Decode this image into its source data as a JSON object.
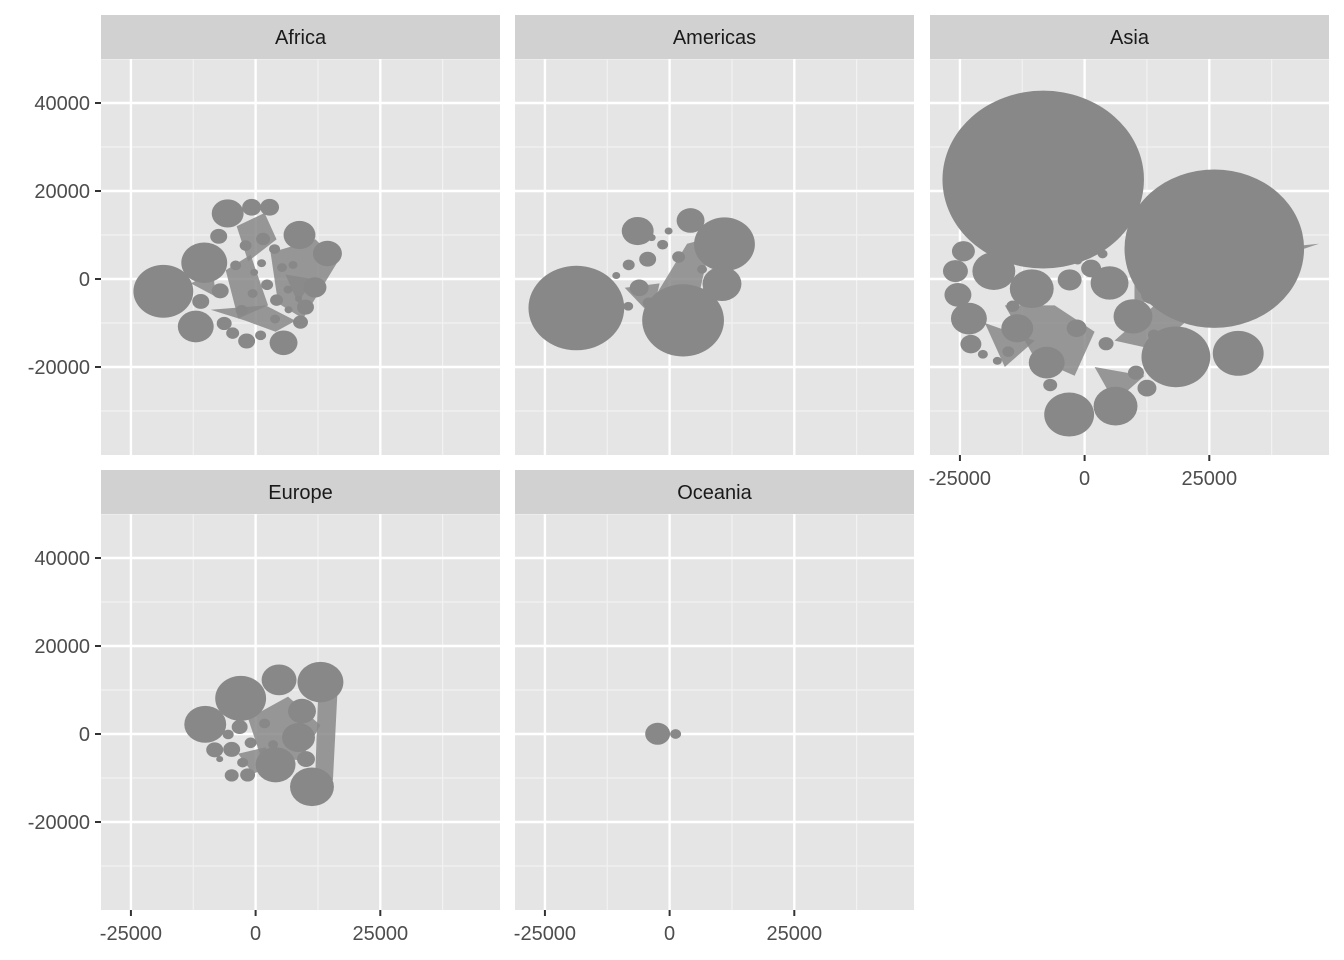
{
  "chart_data": {
    "type": "scatter",
    "description_of_marks": "filled circles with connecting polygons",
    "facet_by": "continent",
    "layout": {
      "columns": 3,
      "rows": 2
    },
    "xlim": [
      -31000,
      49000
    ],
    "ylim": [
      -40000,
      50000
    ],
    "x_ticks": [
      -25000,
      0,
      25000
    ],
    "y_ticks": [
      40000,
      20000,
      0,
      -20000
    ],
    "x_tick_labels": [
      "-25000",
      "0",
      "25000"
    ],
    "y_tick_labels": [
      "40000",
      "20000",
      "0",
      "-20000"
    ],
    "grid": true,
    "mark_color": "#888888",
    "panel_background": "#e5e5e5",
    "strip_background": "#d1d1d1",
    "panels": [
      {
        "label": "Africa",
        "circles": [
          [
            -18500,
            -2800,
            6000
          ],
          [
            -10300,
            3700,
            4600
          ],
          [
            -12000,
            -10800,
            3600
          ],
          [
            -5600,
            14900,
            3200
          ],
          [
            -800,
            16300,
            1900
          ],
          [
            2800,
            16300,
            1900
          ],
          [
            8800,
            10000,
            3200
          ],
          [
            14400,
            5800,
            2900
          ],
          [
            11900,
            -1900,
            2300
          ],
          [
            10000,
            -6400,
            1700
          ],
          [
            9000,
            -9800,
            1500
          ],
          [
            5600,
            -14500,
            2800
          ],
          [
            1000,
            -12800,
            1100
          ],
          [
            -1800,
            -14100,
            1700
          ],
          [
            -4600,
            -12300,
            1300
          ],
          [
            -6300,
            -10100,
            1500
          ],
          [
            -7100,
            -2700,
            1700
          ],
          [
            -11000,
            -5100,
            1700
          ],
          [
            -7400,
            9700,
            1700
          ],
          [
            -2000,
            7600,
            1200
          ],
          [
            1500,
            9100,
            1400
          ],
          [
            3800,
            6800,
            1100
          ],
          [
            5300,
            2600,
            1000
          ],
          [
            2300,
            -1300,
            1200
          ],
          [
            -600,
            -3300,
            1000
          ],
          [
            4200,
            -4800,
            1300
          ],
          [
            6500,
            -2400,
            900
          ],
          [
            7500,
            3200,
            900
          ],
          [
            -4000,
            3100,
            1100
          ],
          [
            1200,
            3600,
            900
          ],
          [
            -2800,
            -7100,
            1200
          ],
          [
            3900,
            -9100,
            1000
          ],
          [
            6600,
            -7000,
            800
          ],
          [
            -300,
            1500,
            800
          ],
          [
            8600,
            -4500,
            700
          ]
        ],
        "polygons": [
          [
            [
              -3800,
              12000
            ],
            [
              1800,
              15000
            ],
            [
              4200,
              9000
            ],
            [
              -1500,
              4000
            ]
          ],
          [
            [
              -6000,
              2000
            ],
            [
              -1000,
              5500
            ],
            [
              2500,
              -6000
            ],
            [
              -3500,
              -9000
            ]
          ],
          [
            [
              3000,
              6000
            ],
            [
              12000,
              9000
            ],
            [
              16500,
              4000
            ],
            [
              9500,
              -9000
            ],
            [
              4500,
              -5500
            ]
          ],
          [
            [
              -9000,
              -7000
            ],
            [
              -2000,
              -9500
            ],
            [
              4000,
              -12000
            ],
            [
              8000,
              -9500
            ],
            [
              2000,
              -6000
            ]
          ],
          [
            [
              -13000,
              -1000
            ],
            [
              -8000,
              -4000
            ],
            [
              -8500,
              1500
            ]
          ],
          [
            [
              6000,
              1000
            ],
            [
              11500,
              0
            ],
            [
              8500,
              -5500
            ]
          ]
        ]
      },
      {
        "label": "Americas",
        "circles": [
          [
            -18700,
            -6600,
            9600
          ],
          [
            2700,
            -9400,
            8200
          ],
          [
            11000,
            7900,
            6100
          ],
          [
            10500,
            -1100,
            3900
          ],
          [
            4200,
            13300,
            2800
          ],
          [
            -6400,
            10900,
            3200
          ],
          [
            -4400,
            4500,
            1700
          ],
          [
            -8200,
            3200,
            1200
          ],
          [
            -6100,
            -2000,
            1900
          ],
          [
            -4200,
            -5400,
            1200
          ],
          [
            -8300,
            -6200,
            1000
          ],
          [
            -2200,
            -4000,
            900
          ],
          [
            -1400,
            7800,
            1100
          ],
          [
            1800,
            5000,
            1300
          ],
          [
            -200,
            10900,
            800
          ],
          [
            6500,
            2200,
            1000
          ],
          [
            -10700,
            800,
            800
          ],
          [
            -3600,
            9400,
            800
          ],
          [
            7500,
            -2500,
            900
          ],
          [
            3600,
            -5200,
            1000
          ]
        ],
        "polygons": [
          [
            [
              -4000,
              -6000
            ],
            [
              3500,
              8000
            ],
            [
              8500,
              9500
            ],
            [
              6000,
              -3000
            ],
            [
              1000,
              -7000
            ]
          ],
          [
            [
              5500,
              5000
            ],
            [
              16500,
              7000
            ],
            [
              11000,
              10500
            ]
          ],
          [
            [
              -9000,
              -2000
            ],
            [
              -3500,
              -8500
            ],
            [
              -2000,
              -1000
            ]
          ]
        ]
      },
      {
        "label": "Asia",
        "circles": [
          [
            -8300,
            22600,
            20200
          ],
          [
            26000,
            6900,
            18000
          ],
          [
            30800,
            -16900,
            5100
          ],
          [
            18300,
            -17700,
            6900
          ],
          [
            6200,
            -28900,
            4400
          ],
          [
            -3100,
            -30800,
            5000
          ],
          [
            -7600,
            -19000,
            3600
          ],
          [
            -13500,
            -11200,
            3200
          ],
          [
            -23200,
            -9000,
            3600
          ],
          [
            -22800,
            -14800,
            2100
          ],
          [
            -25400,
            -3600,
            2700
          ],
          [
            -25900,
            1800,
            2500
          ],
          [
            -24300,
            6300,
            2300
          ],
          [
            -18200,
            1800,
            4300
          ],
          [
            -10600,
            -2200,
            4400
          ],
          [
            -3000,
            -200,
            2400
          ],
          [
            1300,
            2400,
            2000
          ],
          [
            5000,
            -900,
            3800
          ],
          [
            9700,
            -8500,
            3900
          ],
          [
            13500,
            -3500,
            2200
          ],
          [
            10300,
            -21300,
            1600
          ],
          [
            12500,
            -24800,
            1900
          ],
          [
            -15300,
            -16500,
            1200
          ],
          [
            -6900,
            -24100,
            1400
          ],
          [
            -1600,
            -11200,
            2000
          ],
          [
            4300,
            -14700,
            1500
          ],
          [
            -20400,
            -17100,
            1000
          ],
          [
            -17500,
            -18600,
            900
          ],
          [
            13900,
            -12700,
            1200
          ],
          [
            3600,
            5700,
            1000
          ],
          [
            -14400,
            -6200,
            1300
          ],
          [
            -1400,
            4200,
            900
          ]
        ],
        "polygons": [
          [
            [
              -16000,
              -6000
            ],
            [
              -6000,
              -6000
            ],
            [
              2000,
              -12000
            ],
            [
              -2000,
              -22000
            ],
            [
              -10000,
              -18000
            ]
          ],
          [
            [
              6000,
              -14000
            ],
            [
              14000,
              -6000
            ],
            [
              22000,
              -8000
            ],
            [
              14000,
              -16000
            ]
          ],
          [
            [
              10000,
              4000
            ],
            [
              47000,
              8000
            ],
            [
              10000,
              -6000
            ]
          ],
          [
            [
              -20000,
              -10000
            ],
            [
              -10000,
              -14000
            ],
            [
              -16000,
              -20000
            ]
          ],
          [
            [
              2000,
              -20000
            ],
            [
              6000,
              -28000
            ],
            [
              12000,
              -22000
            ]
          ]
        ]
      },
      {
        "label": "Europe",
        "circles": [
          [
            -3000,
            8100,
            5100
          ],
          [
            -10100,
            2200,
            4200
          ],
          [
            4700,
            12300,
            3500
          ],
          [
            13000,
            11800,
            4600
          ],
          [
            11300,
            -12000,
            4400
          ],
          [
            4000,
            -7000,
            4000
          ],
          [
            9300,
            5200,
            2800
          ],
          [
            8600,
            -800,
            3300
          ],
          [
            -8200,
            -3600,
            1700
          ],
          [
            -4800,
            -3500,
            1700
          ],
          [
            -4800,
            -9400,
            1400
          ],
          [
            -1600,
            -9300,
            1500
          ],
          [
            -2600,
            -6500,
            1100
          ],
          [
            -3200,
            1600,
            1600
          ],
          [
            1800,
            2400,
            1100
          ],
          [
            -5500,
            -100,
            1100
          ],
          [
            10100,
            -5700,
            1800
          ],
          [
            -1000,
            -2000,
            1200
          ],
          [
            -7200,
            -5700,
            700
          ],
          [
            3500,
            -2400,
            1000
          ]
        ],
        "polygons": [
          [
            [
              -1500,
              3500
            ],
            [
              6500,
              8500
            ],
            [
              13000,
              2000
            ],
            [
              9000,
              -6000
            ],
            [
              1000,
              -5000
            ]
          ],
          [
            [
              12500,
              8000
            ],
            [
              16500,
              11500
            ],
            [
              15500,
              -10500
            ],
            [
              12000,
              -8000
            ]
          ],
          [
            [
              -3500,
              -4500
            ],
            [
              -500,
              -9000
            ],
            [
              3500,
              -7500
            ],
            [
              2000,
              -3000
            ]
          ]
        ]
      },
      {
        "label": "Oceania",
        "circles": [
          [
            -2400,
            50,
            2500
          ],
          [
            1200,
            0,
            1100
          ]
        ],
        "polygons": []
      }
    ]
  }
}
